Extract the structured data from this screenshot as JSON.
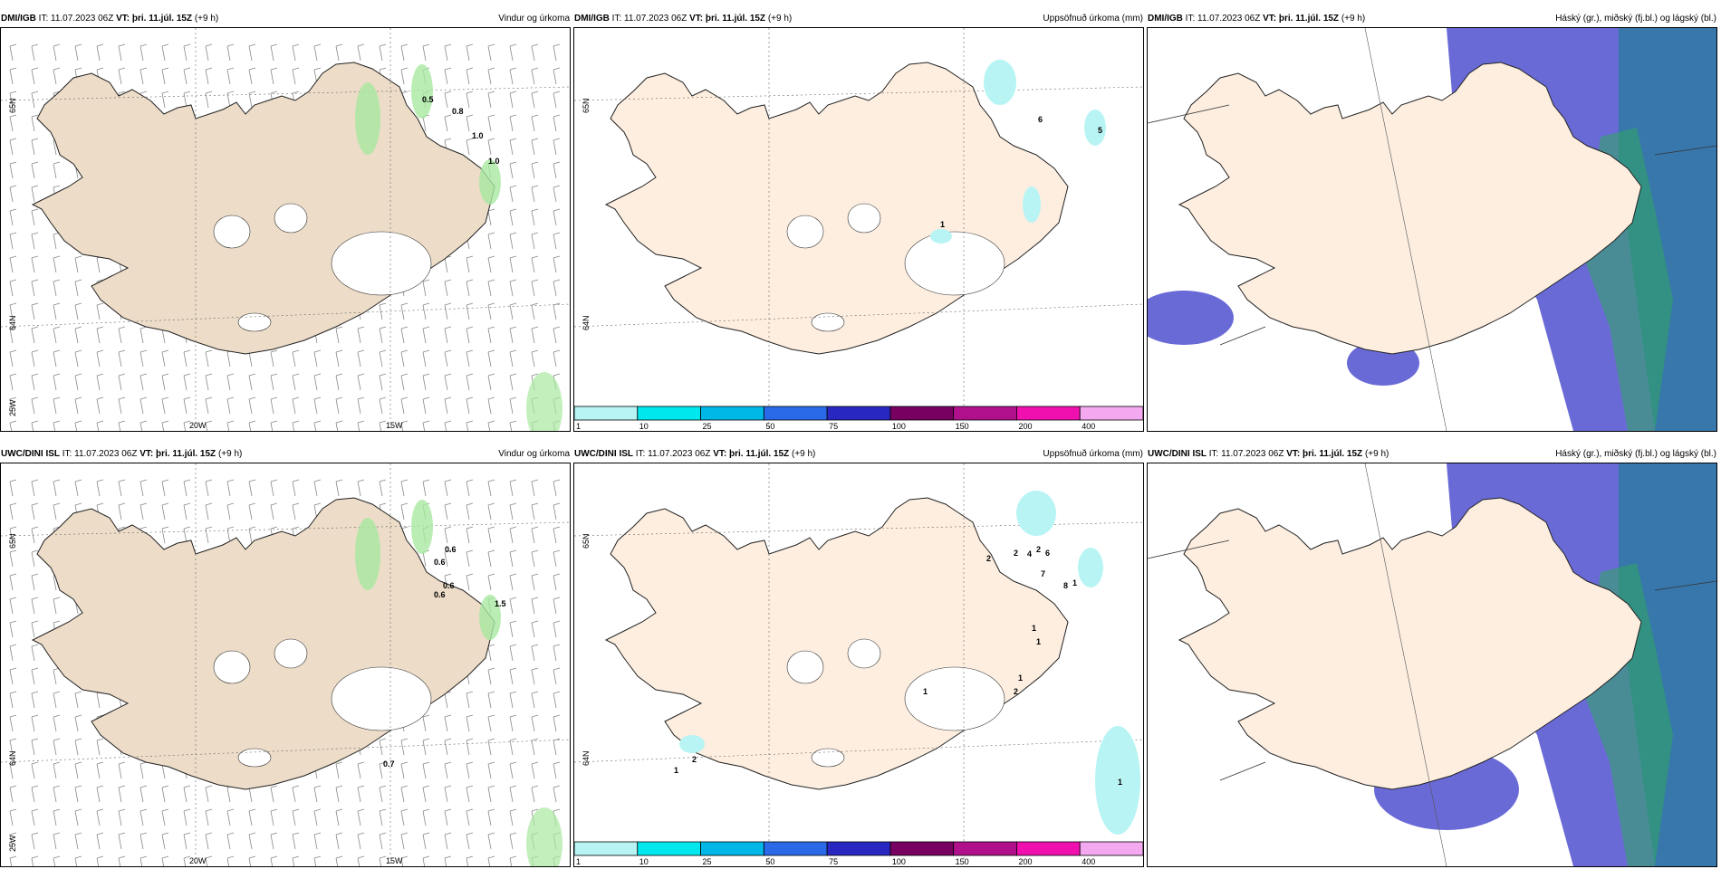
{
  "panels": [
    {
      "model": "DMI/IGB",
      "it_label": "IT:",
      "it": "11.07.2023 06Z",
      "vt_label": "VT:",
      "vt": "þri. 11.júl. 15Z",
      "lead": "(+9 h)",
      "title": "Vindur og úrkoma",
      "lat_labels": [
        "65N",
        "64N",
        "25W"
      ],
      "lon_labels": [
        "20W",
        "15W"
      ],
      "values": [
        "0.5",
        "0.8",
        "1.0",
        "1.0"
      ]
    },
    {
      "model": "DMI/IGB",
      "it_label": "IT:",
      "it": "11.07.2023 06Z",
      "vt_label": "VT:",
      "vt": "þri. 11.júl. 15Z",
      "lead": "(+9 h)",
      "title": "Uppsöfnuð úrkoma (mm)",
      "lat_labels": [
        "65N",
        "64N"
      ],
      "values": [
        "6",
        "5",
        "1"
      ]
    },
    {
      "model": "DMI/IGB",
      "it_label": "IT:",
      "it": "11.07.2023 06Z",
      "vt_label": "VT:",
      "vt": "þri. 11.júl. 15Z",
      "lead": "(+9 h)",
      "title": "Háský (gr.), miðský (fj.bl.) og lágský (bl.)"
    },
    {
      "model": "UWC/DINI ISL",
      "it_label": "IT:",
      "it": "11.07.2023 06Z",
      "vt_label": "VT:",
      "vt": "þri. 11.júl. 15Z",
      "lead": "(+9 h)",
      "title": "Vindur og úrkoma",
      "lat_labels": [
        "65N",
        "64N",
        "25W"
      ],
      "lon_labels": [
        "20W",
        "15W"
      ],
      "values": [
        "0.6",
        "0.6",
        "0.6",
        "0.6",
        "1.5",
        "0.7"
      ]
    },
    {
      "model": "UWC/DINI ISL",
      "it_label": "IT:",
      "it": "11.07.2023 06Z",
      "vt_label": "VT:",
      "vt": "þri. 11.júl. 15Z",
      "lead": "(+9 h)",
      "title": "Uppsöfnuð úrkoma (mm)",
      "lat_labels": [
        "65N",
        "64N"
      ],
      "values": [
        "2",
        "2",
        "4",
        "2",
        "6",
        "7",
        "8",
        "1",
        "1",
        "1",
        "1",
        "2",
        "1",
        "1",
        "2",
        "1"
      ]
    },
    {
      "model": "UWC/DINI ISL",
      "it_label": "IT:",
      "it": "11.07.2023 06Z",
      "vt_label": "VT:",
      "vt": "þri. 11.júl. 15Z",
      "lead": "(+9 h)",
      "title": "Háský (gr.), miðský (fj.bl.) og lágský (bl.)"
    }
  ],
  "legend": {
    "labels": [
      "1",
      "10",
      "25",
      "50",
      "75",
      "100",
      "150",
      "200",
      "400"
    ],
    "colors": [
      "#b8f4f4",
      "#00e8ee",
      "#00b8e8",
      "#2a6ae8",
      "#2828c0",
      "#780060",
      "#b0108c",
      "#f010b0",
      "#f4a8f0"
    ]
  },
  "colors": {
    "land": "#ecdcc8",
    "land2": "#fdeee0",
    "sea": "#ffffff",
    "cloud_high": "#30a860",
    "cloud_mid": "#5050d0",
    "cloud_low": "#2a7aa0"
  }
}
